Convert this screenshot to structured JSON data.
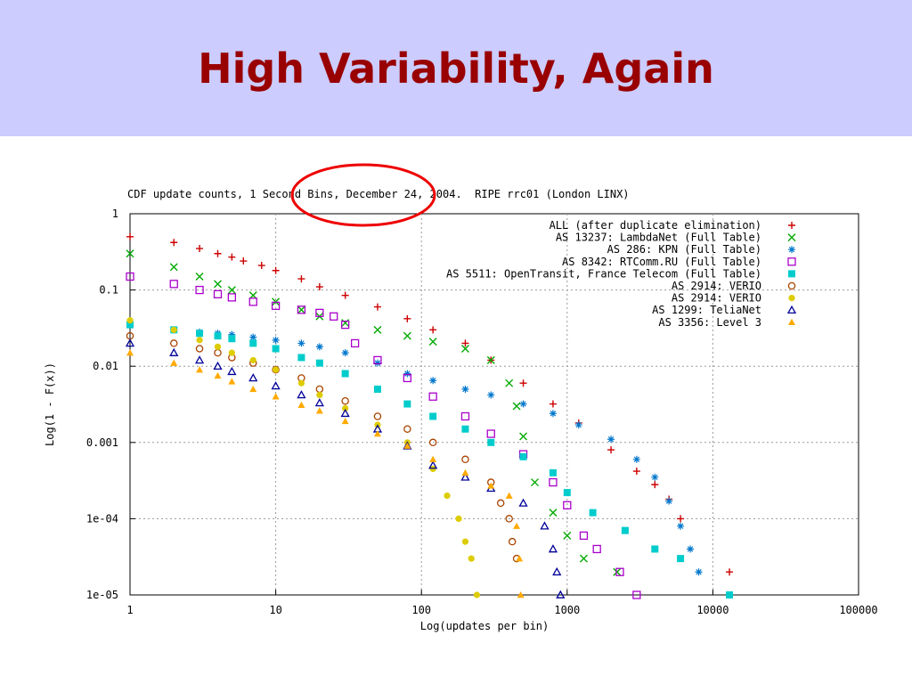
{
  "slide": {
    "title": "High Variability, Again"
  },
  "chart_data": {
    "type": "scatter",
    "title": "CDF update counts, 1 Second Bins, December 24, 2004.  RIPE rrc01 (London LINX)",
    "xlabel": "Log(updates per bin)",
    "ylabel": "Log(1 - F(x))",
    "xscale": "log",
    "yscale": "log",
    "xlim": [
      1,
      100000
    ],
    "ylim": [
      1e-05,
      1
    ],
    "x_ticks": [
      "1",
      "10",
      "100",
      "1000",
      "10000",
      "100000"
    ],
    "y_ticks": [
      "1",
      "0.1",
      "0.01",
      "0.001",
      "1e-04",
      "1e-05"
    ],
    "grid": true,
    "legend_position": "top-right",
    "highlight": "1 Second Bins",
    "series": [
      {
        "name": "ALL (after duplicate elimination)",
        "marker": "plus",
        "color": "#cc0000",
        "points": [
          [
            1,
            0.5
          ],
          [
            2,
            0.42
          ],
          [
            3,
            0.35
          ],
          [
            4,
            0.3
          ],
          [
            5,
            0.27
          ],
          [
            6,
            0.24
          ],
          [
            8,
            0.21
          ],
          [
            10,
            0.18
          ],
          [
            15,
            0.14
          ],
          [
            20,
            0.11
          ],
          [
            30,
            0.085
          ],
          [
            50,
            0.06
          ],
          [
            80,
            0.042
          ],
          [
            120,
            0.03
          ],
          [
            200,
            0.02
          ],
          [
            300,
            0.012
          ],
          [
            500,
            0.006
          ],
          [
            800,
            0.0032
          ],
          [
            1200,
            0.0018
          ],
          [
            2000,
            0.0008
          ],
          [
            3000,
            0.00042
          ],
          [
            4000,
            0.00028
          ],
          [
            5000,
            0.00018
          ],
          [
            6000,
            0.0001
          ],
          [
            13000,
            2e-05
          ]
        ]
      },
      {
        "name": "AS 13237: LambdaNet (Full Table)",
        "marker": "cross",
        "color": "#00aa00",
        "points": [
          [
            1,
            0.3
          ],
          [
            2,
            0.2
          ],
          [
            3,
            0.15
          ],
          [
            4,
            0.12
          ],
          [
            5,
            0.1
          ],
          [
            7,
            0.085
          ],
          [
            10,
            0.07
          ],
          [
            15,
            0.055
          ],
          [
            20,
            0.045
          ],
          [
            30,
            0.037
          ],
          [
            50,
            0.03
          ],
          [
            80,
            0.025
          ],
          [
            120,
            0.021
          ],
          [
            200,
            0.017
          ],
          [
            300,
            0.012
          ],
          [
            400,
            0.006
          ],
          [
            450,
            0.003
          ],
          [
            500,
            0.0012
          ],
          [
            600,
            0.0003
          ],
          [
            800,
            0.00012
          ],
          [
            1000,
            6e-05
          ],
          [
            1300,
            3e-05
          ],
          [
            2200,
            2e-05
          ]
        ]
      },
      {
        "name": "AS 286: KPN (Full Table)",
        "marker": "star",
        "color": "#0077cc",
        "points": [
          [
            1,
            0.035
          ],
          [
            2,
            0.03
          ],
          [
            3,
            0.028
          ],
          [
            4,
            0.027
          ],
          [
            5,
            0.026
          ],
          [
            7,
            0.024
          ],
          [
            10,
            0.022
          ],
          [
            15,
            0.02
          ],
          [
            20,
            0.018
          ],
          [
            30,
            0.015
          ],
          [
            50,
            0.011
          ],
          [
            80,
            0.008
          ],
          [
            120,
            0.0065
          ],
          [
            200,
            0.005
          ],
          [
            300,
            0.0042
          ],
          [
            500,
            0.0032
          ],
          [
            800,
            0.0024
          ],
          [
            1200,
            0.0017
          ],
          [
            2000,
            0.0011
          ],
          [
            3000,
            0.0006
          ],
          [
            4000,
            0.00035
          ],
          [
            5000,
            0.00017
          ],
          [
            6000,
            8e-05
          ],
          [
            7000,
            4e-05
          ],
          [
            8000,
            2e-05
          ]
        ]
      },
      {
        "name": "AS 8342: RTComm.RU (Full Table)",
        "marker": "square-open",
        "color": "#aa00cc",
        "points": [
          [
            1,
            0.15
          ],
          [
            2,
            0.12
          ],
          [
            3,
            0.1
          ],
          [
            4,
            0.088
          ],
          [
            5,
            0.08
          ],
          [
            7,
            0.07
          ],
          [
            10,
            0.062
          ],
          [
            15,
            0.055
          ],
          [
            20,
            0.05
          ],
          [
            25,
            0.045
          ],
          [
            30,
            0.035
          ],
          [
            35,
            0.02
          ],
          [
            50,
            0.012
          ],
          [
            80,
            0.007
          ],
          [
            120,
            0.004
          ],
          [
            200,
            0.0022
          ],
          [
            300,
            0.0013
          ],
          [
            500,
            0.0007
          ],
          [
            800,
            0.0003
          ],
          [
            1000,
            0.00015
          ],
          [
            1300,
            6e-05
          ],
          [
            1600,
            4e-05
          ],
          [
            2300,
            2e-05
          ],
          [
            3000,
            1e-05
          ]
        ]
      },
      {
        "name": "AS 5511: OpenTransit, France Telecom (Full Table)",
        "marker": "square",
        "color": "#00cccc",
        "points": [
          [
            1,
            0.035
          ],
          [
            2,
            0.03
          ],
          [
            3,
            0.027
          ],
          [
            4,
            0.025
          ],
          [
            5,
            0.023
          ],
          [
            7,
            0.02
          ],
          [
            10,
            0.017
          ],
          [
            15,
            0.013
          ],
          [
            20,
            0.011
          ],
          [
            30,
            0.008
          ],
          [
            50,
            0.005
          ],
          [
            80,
            0.0032
          ],
          [
            120,
            0.0022
          ],
          [
            200,
            0.0015
          ],
          [
            300,
            0.001
          ],
          [
            500,
            0.00065
          ],
          [
            800,
            0.0004
          ],
          [
            1000,
            0.00022
          ],
          [
            1500,
            0.00012
          ],
          [
            2500,
            7e-05
          ],
          [
            4000,
            4e-05
          ],
          [
            6000,
            3e-05
          ],
          [
            13000,
            1e-05
          ]
        ]
      },
      {
        "name": "AS 2914: VERIO",
        "marker": "circle-open",
        "color": "#aa4400",
        "points": [
          [
            1,
            0.025
          ],
          [
            2,
            0.02
          ],
          [
            3,
            0.017
          ],
          [
            4,
            0.015
          ],
          [
            5,
            0.013
          ],
          [
            7,
            0.011
          ],
          [
            10,
            0.009
          ],
          [
            15,
            0.007
          ],
          [
            20,
            0.005
          ],
          [
            30,
            0.0035
          ],
          [
            50,
            0.0022
          ],
          [
            80,
            0.0015
          ],
          [
            120,
            0.001
          ],
          [
            200,
            0.0006
          ],
          [
            300,
            0.0003
          ],
          [
            350,
            0.00016
          ],
          [
            400,
            0.0001
          ],
          [
            420,
            5e-05
          ],
          [
            450,
            3e-05
          ]
        ]
      },
      {
        "name": "AS 2914: VERIO",
        "marker": "circle",
        "color": "#ddcc00",
        "points": [
          [
            1,
            0.04
          ],
          [
            2,
            0.03
          ],
          [
            3,
            0.022
          ],
          [
            4,
            0.018
          ],
          [
            5,
            0.015
          ],
          [
            7,
            0.012
          ],
          [
            10,
            0.009
          ],
          [
            15,
            0.006
          ],
          [
            20,
            0.0042
          ],
          [
            30,
            0.0028
          ],
          [
            50,
            0.0017
          ],
          [
            80,
            0.001
          ],
          [
            120,
            0.00045
          ],
          [
            150,
            0.0002
          ],
          [
            180,
            0.0001
          ],
          [
            200,
            5e-05
          ],
          [
            220,
            3e-05
          ],
          [
            240,
            1e-05
          ]
        ]
      },
      {
        "name": "AS 1299: TeliaNet",
        "marker": "triangle-open",
        "color": "#000099",
        "points": [
          [
            1,
            0.02
          ],
          [
            2,
            0.015
          ],
          [
            3,
            0.012
          ],
          [
            4,
            0.01
          ],
          [
            5,
            0.0085
          ],
          [
            7,
            0.007
          ],
          [
            10,
            0.0055
          ],
          [
            15,
            0.0042
          ],
          [
            20,
            0.0033
          ],
          [
            30,
            0.0024
          ],
          [
            50,
            0.0015
          ],
          [
            80,
            0.0009
          ],
          [
            120,
            0.0005
          ],
          [
            200,
            0.00035
          ],
          [
            300,
            0.00025
          ],
          [
            500,
            0.00016
          ],
          [
            700,
            8e-05
          ],
          [
            800,
            4e-05
          ],
          [
            850,
            2e-05
          ],
          [
            900,
            1e-05
          ]
        ]
      },
      {
        "name": "AS 3356: Level 3",
        "marker": "triangle",
        "color": "#ffaa00",
        "points": [
          [
            1,
            0.015
          ],
          [
            2,
            0.011
          ],
          [
            3,
            0.009
          ],
          [
            4,
            0.0075
          ],
          [
            5,
            0.0063
          ],
          [
            7,
            0.005
          ],
          [
            10,
            0.004
          ],
          [
            15,
            0.0031
          ],
          [
            20,
            0.0026
          ],
          [
            30,
            0.0019
          ],
          [
            50,
            0.0013
          ],
          [
            80,
            0.0009
          ],
          [
            120,
            0.0006
          ],
          [
            200,
            0.0004
          ],
          [
            300,
            0.00027
          ],
          [
            400,
            0.0002
          ],
          [
            450,
            8e-05
          ],
          [
            470,
            3e-05
          ],
          [
            480,
            1e-05
          ]
        ]
      }
    ]
  }
}
